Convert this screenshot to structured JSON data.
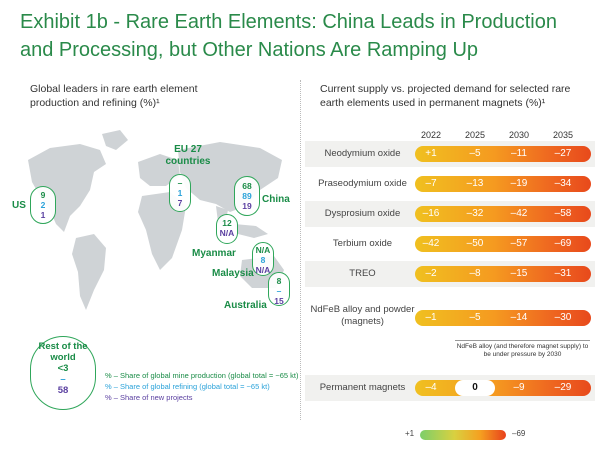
{
  "title": "Exhibit 1b - Rare Earth Elements: China Leads in Production and Processing, but Other Nations Are Ramping Up",
  "left_panel": {
    "subtitle": "Global leaders in rare earth element production and refining (%)¹",
    "countries": [
      {
        "name": "US",
        "production": "9",
        "refining": "2",
        "projects": "1"
      },
      {
        "name": "EU 27 countries",
        "production": "–",
        "refining": "1",
        "projects": "7"
      },
      {
        "name": "China",
        "production": "68",
        "refining": "89",
        "projects": "19"
      },
      {
        "name": "Myanmar",
        "production": "12",
        "refining": "",
        "projects": "N/A"
      },
      {
        "name": "Malaysia",
        "production": "N/A",
        "refining": "8",
        "projects": "N/A"
      },
      {
        "name": "Australia",
        "production": "8",
        "refining": "–",
        "projects": "15"
      }
    ],
    "rest_of_world": {
      "label": "Rest of the world",
      "production": "<3",
      "refining": "–",
      "projects": "58"
    },
    "legend": [
      {
        "text": "% – Share of global mine production (global total = ~65 kt)",
        "color": "#1a8c47"
      },
      {
        "text": "% – Share of global refining (global total = ~65 kt)",
        "color": "#2aa2d9"
      },
      {
        "text": "% – Share of new projects",
        "color": "#5a3fa0"
      }
    ]
  },
  "chart_data": {
    "type": "table",
    "title": "Current supply vs. projected demand for selected rare earth elements used in permanent magnets (%)¹",
    "columns": [
      "2022",
      "2025",
      "2030",
      "2035"
    ],
    "rows": [
      {
        "label": "Neodymium oxide",
        "values": [
          "+1",
          "–5",
          "–11",
          "–27"
        ]
      },
      {
        "label": "Praseodymium oxide",
        "values": [
          "–7",
          "–13",
          "–19",
          "–34"
        ]
      },
      {
        "label": "Dysprosium oxide",
        "values": [
          "–16",
          "–32",
          "–42",
          "–58"
        ]
      },
      {
        "label": "Terbium oxide",
        "values": [
          "–42",
          "–50",
          "–57",
          "–69"
        ]
      },
      {
        "label": "TREO",
        "values": [
          "–2",
          "–8",
          "–15",
          "–31"
        ]
      },
      {
        "label": "NdFeB alloy and powder (magnets)",
        "values": [
          "–1",
          "–5",
          "–14",
          "–30"
        ]
      },
      {
        "label": "Permanent magnets",
        "values": [
          "–4",
          "0",
          "–9",
          "–29"
        ]
      }
    ],
    "note": "NdFeB alloy (and therefore magnet supply) to be under pressure by 2030",
    "scale": {
      "min_label": "+1",
      "max_label": "–69",
      "min_color": "#7ccf6a",
      "max_color": "#e8401c"
    }
  }
}
